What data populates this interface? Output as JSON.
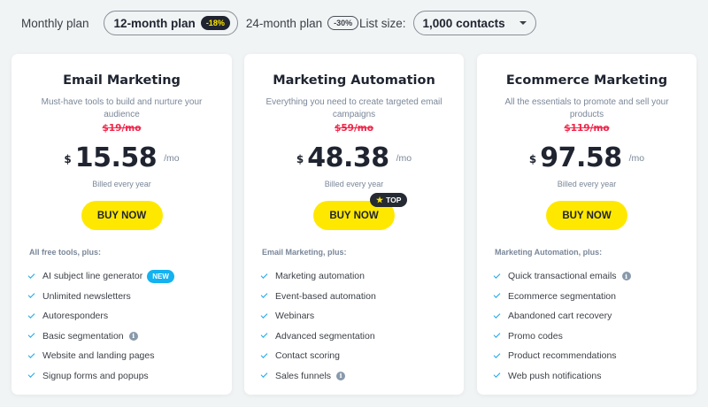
{
  "billing": {
    "options": [
      {
        "label": "Monthly plan",
        "selected": false,
        "badge": null
      },
      {
        "label": "12-month plan",
        "selected": true,
        "badge": "-18%"
      },
      {
        "label": "24-month plan",
        "selected": false,
        "badge": "-30%"
      }
    ]
  },
  "list_size": {
    "label": "List size:",
    "value": "1,000 contacts"
  },
  "colors": {
    "accent_yellow": "#ffe800",
    "strike_red": "#f0264a",
    "check_blue": "#19a6e8",
    "new_badge": "#13b2f0",
    "dark": "#1f2430"
  },
  "plans": [
    {
      "title": "Email Marketing",
      "description": "Must-have tools to build and nurture your audience",
      "old_price": "$19/mo",
      "currency": "$",
      "price": "15.58",
      "per": "/mo",
      "billed": "Billed every year",
      "button": "BUY NOW",
      "features_heading": "All free tools, plus:",
      "features": [
        {
          "label": "AI subject line generator",
          "badge": "NEW"
        },
        {
          "label": "Unlimited newsletters"
        },
        {
          "label": "Autoresponders"
        },
        {
          "label": "Basic segmentation",
          "info": true
        },
        {
          "label": "Website and landing pages"
        },
        {
          "label": "Signup forms and popups"
        }
      ]
    },
    {
      "title": "Marketing Automation",
      "description": "Everything you need to create targeted email campaigns",
      "old_price": "$59/mo",
      "currency": "$",
      "price": "48.38",
      "per": "/mo",
      "billed": "Billed every year",
      "button": "BUY NOW",
      "top_badge": "TOP",
      "features_heading": "Email Marketing, plus:",
      "features": [
        {
          "label": "Marketing automation"
        },
        {
          "label": "Event-based automation"
        },
        {
          "label": "Webinars"
        },
        {
          "label": "Advanced segmentation"
        },
        {
          "label": "Contact scoring"
        },
        {
          "label": "Sales funnels",
          "info": true
        }
      ]
    },
    {
      "title": "Ecommerce Marketing",
      "description": "All the essentials to promote and sell your products",
      "old_price": "$119/mo",
      "currency": "$",
      "price": "97.58",
      "per": "/mo",
      "billed": "Billed every year",
      "button": "BUY NOW",
      "features_heading": "Marketing Automation, plus:",
      "features": [
        {
          "label": "Quick transactional emails",
          "info": true
        },
        {
          "label": "Ecommerce segmentation"
        },
        {
          "label": "Abandoned cart recovery"
        },
        {
          "label": "Promo codes"
        },
        {
          "label": "Product recommendations"
        },
        {
          "label": "Web push notifications"
        }
      ]
    }
  ],
  "icons": {
    "info": "i",
    "star": "★",
    "check": "check-icon",
    "caret": "caret-down-icon"
  }
}
